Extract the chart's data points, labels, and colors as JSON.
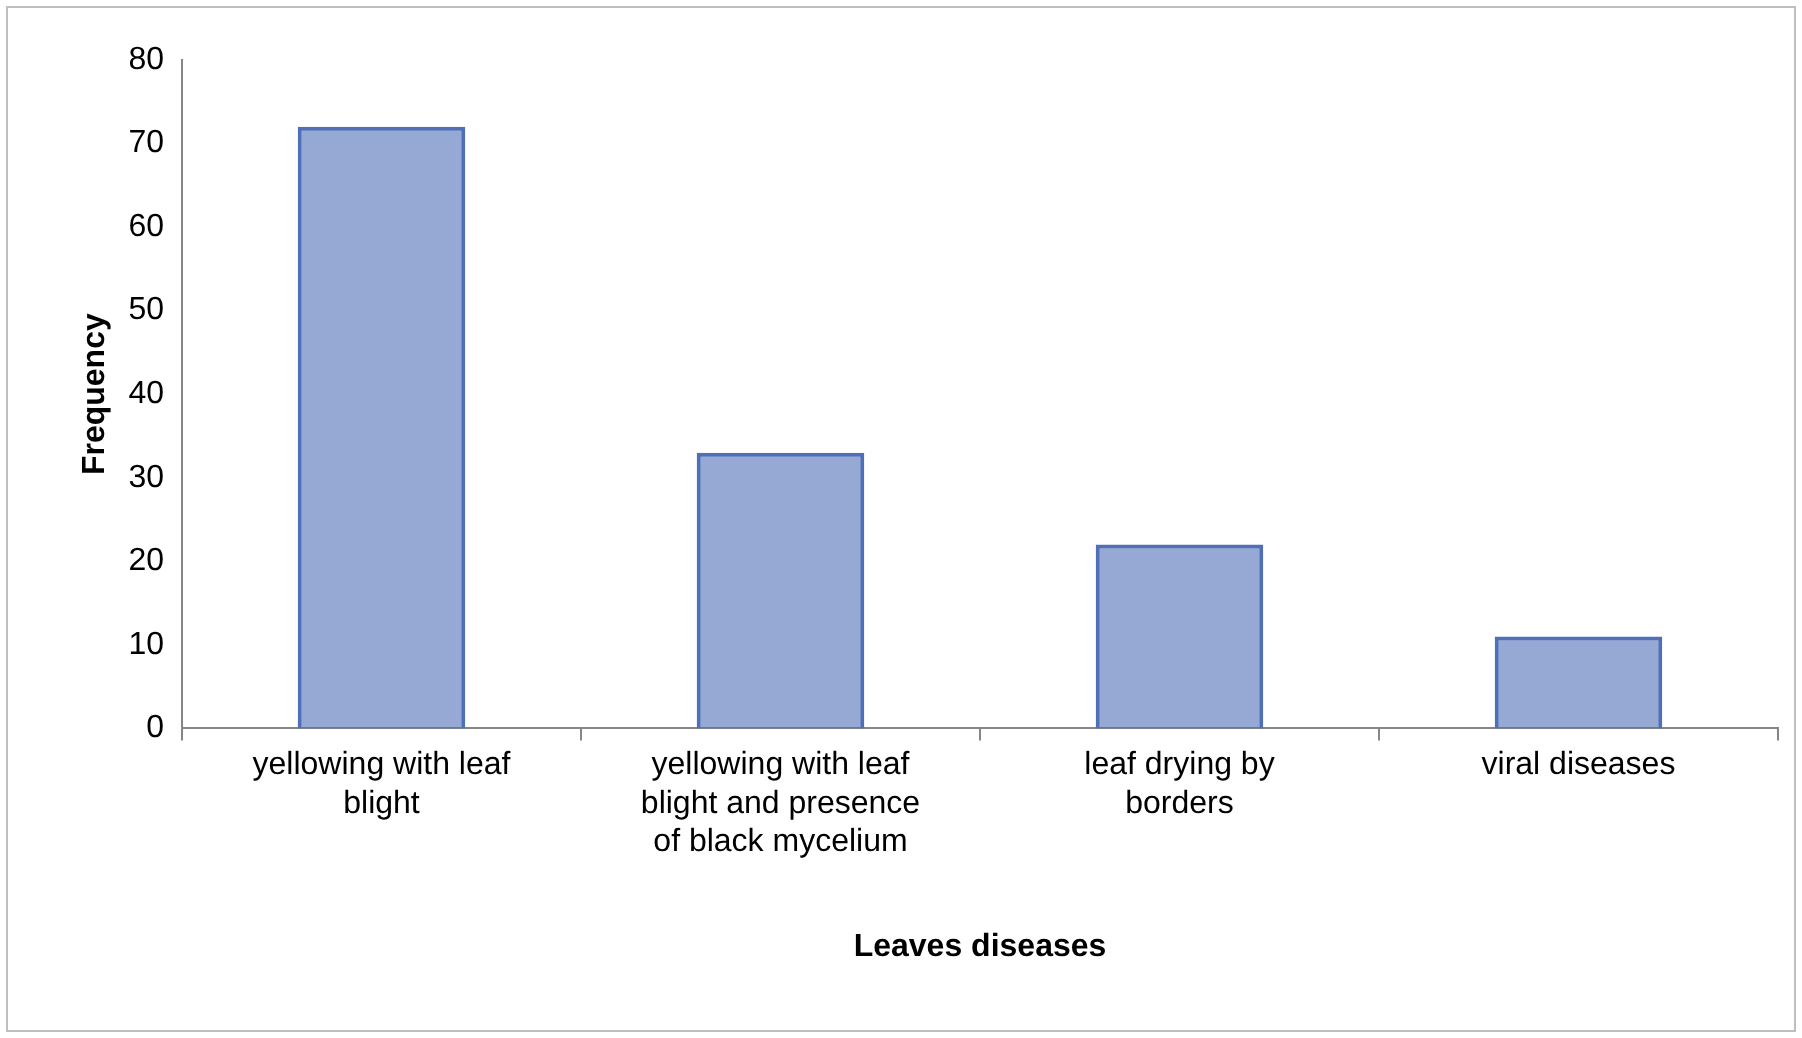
{
  "chart_data": {
    "type": "bar",
    "xlabel": "Leaves diseases",
    "ylabel": "Frequency",
    "categories": [
      "yellowing with leaf blight",
      "yellowing with leaf blight and presence of black mycelium",
      "leaf drying by borders",
      "viral diseases"
    ],
    "values": [
      72,
      33,
      22,
      11
    ],
    "color": "#4f6fb8",
    "ylim": [
      0,
      80
    ],
    "yticks": [
      0,
      10,
      20,
      30,
      40,
      50,
      60,
      70,
      80
    ],
    "grid": false,
    "legend": false
  }
}
